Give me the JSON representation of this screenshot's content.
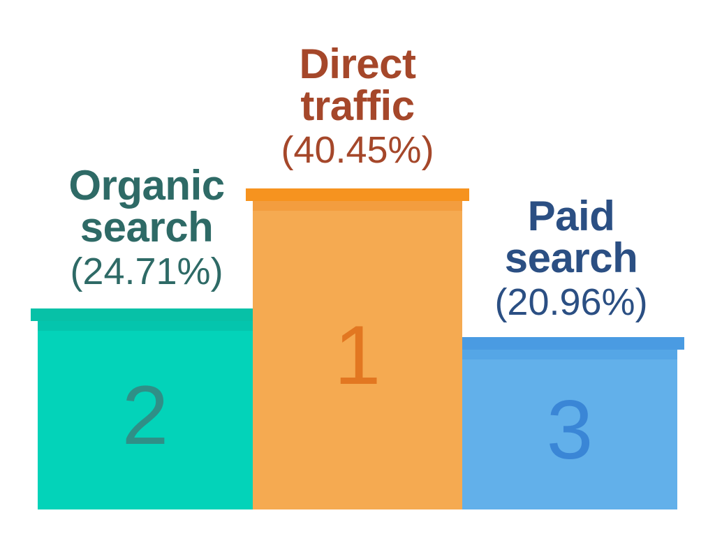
{
  "chart_data": {
    "type": "bar",
    "categories": [
      "Organic search",
      "Direct traffic",
      "Paid search"
    ],
    "values": [
      24.71,
      40.45,
      20.96
    ],
    "ranks": [
      "2",
      "1",
      "3"
    ],
    "series": [
      {
        "values": [
          24.71,
          40.45,
          20.96
        ]
      }
    ],
    "title": "",
    "xlabel": "",
    "ylabel": "",
    "ylim": [
      0,
      50
    ],
    "grid": false,
    "legend": "none"
  },
  "bars": [
    {
      "name_line1": "Organic",
      "name_line2": "search",
      "value_label": "(24.71%)",
      "rank": "2",
      "label_color": "#2e6a66",
      "pct_color": "#2e6a66",
      "body_color": "#03d3b9",
      "cap_color": "#07c1a7",
      "shade_color": "#04c5ad",
      "rank_color": "#2f8f87"
    },
    {
      "name_line1": "Direct",
      "name_line2": "traffic",
      "value_label": "(40.45%)",
      "rank": "1",
      "label_color": "#a5472a",
      "pct_color": "#a5472a",
      "body_color": "#f5aa51",
      "cap_color": "#f6931f",
      "shade_color": "#f39d3f",
      "rank_color": "#e27721"
    },
    {
      "name_line1": "Paid",
      "name_line2": "search",
      "value_label": "(20.96%)",
      "rank": "3",
      "label_color": "#2b4f83",
      "pct_color": "#2b4f83",
      "body_color": "#62b0ea",
      "cap_color": "#4a9be2",
      "shade_color": "#55a6e6",
      "rank_color": "#3a86d6"
    }
  ]
}
